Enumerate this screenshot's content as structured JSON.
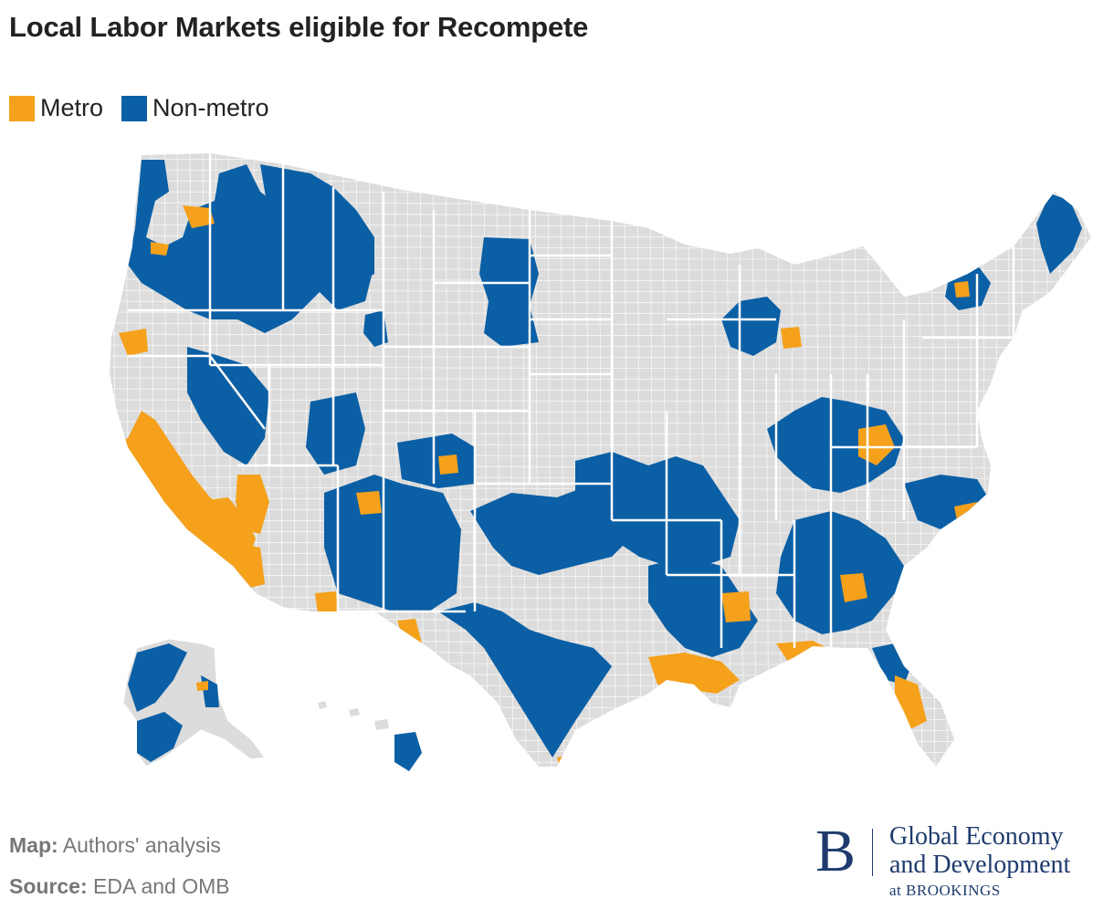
{
  "title": "Local Labor Markets eligible for Recompete",
  "legend": {
    "items": [
      {
        "label": "Metro",
        "color": "#f5a11c"
      },
      {
        "label": "Non-metro",
        "color": "#0b5fa5"
      }
    ]
  },
  "map": {
    "base_color": "#dcdcdc",
    "border_color": "#ffffff",
    "metro_color": "#f5a11c",
    "nonmetro_color": "#0b5fa5"
  },
  "footer": {
    "map_key": "Map:",
    "map_value": "Authors' analysis",
    "source_key": "Source:",
    "source_value": "EDA and OMB"
  },
  "brand": {
    "mark": "B",
    "line1": "Global Economy",
    "line2": "and Development",
    "line3": "at BROOKINGS"
  }
}
